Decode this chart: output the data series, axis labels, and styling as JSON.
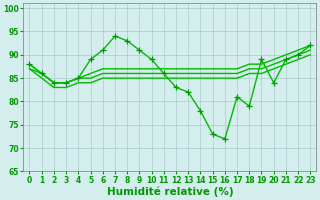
{
  "series": [
    {
      "x": [
        0,
        1,
        2,
        3,
        4,
        5,
        6,
        7,
        8,
        9,
        10,
        11,
        12,
        13,
        14,
        15,
        16,
        17,
        18,
        19,
        20,
        21,
        22,
        23
      ],
      "y": [
        88,
        86,
        84,
        84,
        85,
        89,
        91,
        94,
        93,
        91,
        89,
        86,
        83,
        82,
        78,
        73,
        72,
        81,
        79,
        89,
        84,
        89,
        90,
        92
      ],
      "marker": true
    },
    {
      "x": [
        0,
        1,
        2,
        3,
        4,
        5,
        6,
        7,
        8,
        9,
        10,
        11,
        12,
        13,
        14,
        15,
        16,
        17,
        18,
        19,
        20,
        21,
        22,
        23
      ],
      "y": [
        88,
        86,
        84,
        84,
        85,
        86,
        87,
        87,
        87,
        87,
        87,
        87,
        87,
        87,
        87,
        87,
        87,
        87,
        88,
        88,
        89,
        90,
        91,
        92
      ],
      "marker": false
    },
    {
      "x": [
        0,
        1,
        2,
        3,
        4,
        5,
        6,
        7,
        8,
        9,
        10,
        11,
        12,
        13,
        14,
        15,
        16,
        17,
        18,
        19,
        20,
        21,
        22,
        23
      ],
      "y": [
        87,
        86,
        84,
        84,
        85,
        85,
        86,
        86,
        86,
        86,
        86,
        86,
        86,
        86,
        86,
        86,
        86,
        86,
        87,
        87,
        88,
        89,
        90,
        91
      ],
      "marker": false
    },
    {
      "x": [
        0,
        1,
        2,
        3,
        4,
        5,
        6,
        7,
        8,
        9,
        10,
        11,
        12,
        13,
        14,
        15,
        16,
        17,
        18,
        19,
        20,
        21,
        22,
        23
      ],
      "y": [
        87,
        85,
        83,
        83,
        84,
        84,
        85,
        85,
        85,
        85,
        85,
        85,
        85,
        85,
        85,
        85,
        85,
        85,
        86,
        86,
        87,
        88,
        89,
        90
      ],
      "marker": false
    }
  ],
  "line_color": "#00bb00",
  "marker_color": "#009900",
  "bg_color": "#d4eeee",
  "grid_color": "#aacccc",
  "axis_color": "#009900",
  "xlabel": "Humidité relative (%)",
  "ylim": [
    65,
    101
  ],
  "xlim": [
    -0.5,
    23.5
  ],
  "yticks": [
    65,
    70,
    75,
    80,
    85,
    90,
    95,
    100
  ],
  "xticks": [
    0,
    1,
    2,
    3,
    4,
    5,
    6,
    7,
    8,
    9,
    10,
    11,
    12,
    13,
    14,
    15,
    16,
    17,
    18,
    19,
    20,
    21,
    22,
    23
  ],
  "tick_fontsize": 5.5,
  "xlabel_fontsize": 7.5,
  "line_width": 1.0,
  "marker_size": 4
}
